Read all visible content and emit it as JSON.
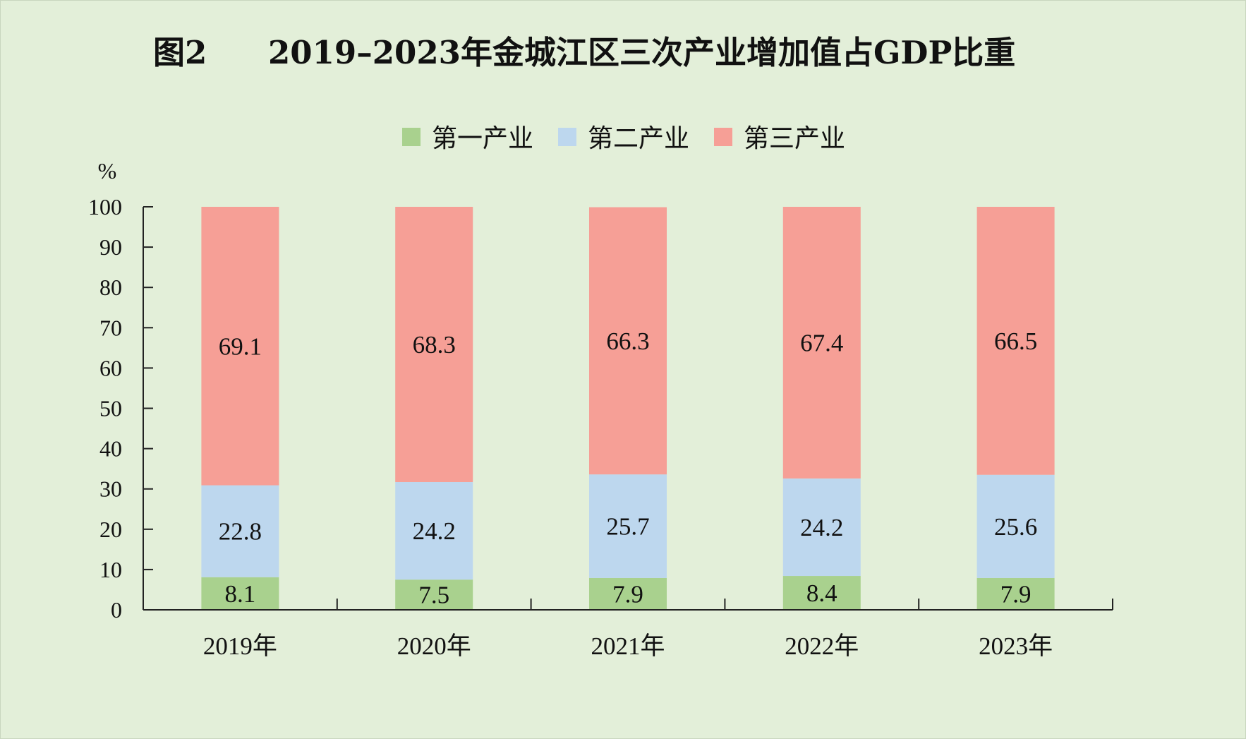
{
  "title": {
    "figure_no": "图2",
    "text": "2019–2023年金城江区三次产业增加值占GDP比重"
  },
  "chart_data": {
    "type": "bar",
    "stacked": true,
    "title": "2019–2023年金城江区三次产业增加值占GDP比重",
    "ylabel": "%",
    "xlabel": "",
    "ylim": [
      0,
      100
    ],
    "yticks": [
      0,
      10,
      20,
      30,
      40,
      50,
      60,
      70,
      80,
      90,
      100
    ],
    "grid": false,
    "legend_position": "top-center",
    "categories": [
      "2019年",
      "2020年",
      "2021年",
      "2022年",
      "2023年"
    ],
    "series": [
      {
        "name": "第一产业",
        "color": "#a9d18e",
        "values": [
          8.1,
          7.5,
          7.9,
          8.4,
          7.9
        ]
      },
      {
        "name": "第二产业",
        "color": "#bdd7ee",
        "values": [
          22.8,
          24.2,
          25.7,
          24.2,
          25.6
        ]
      },
      {
        "name": "第三产业",
        "color": "#f69f96",
        "values": [
          69.1,
          68.3,
          66.3,
          67.4,
          66.5
        ]
      }
    ]
  }
}
